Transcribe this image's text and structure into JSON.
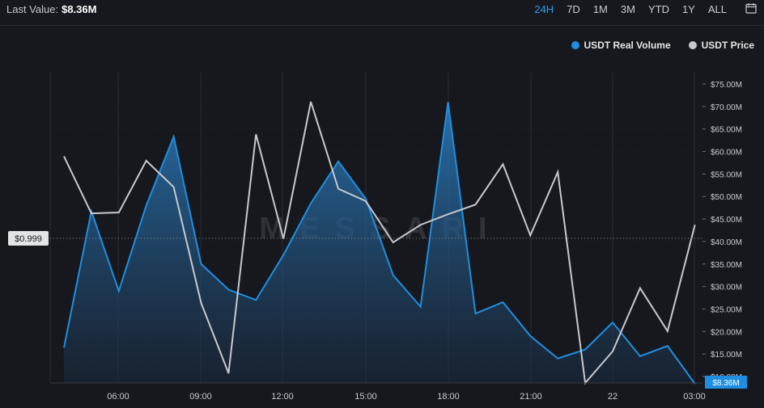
{
  "header": {
    "last_label": "Last Value:",
    "last_value": "$8.36M",
    "ranges": [
      "24H",
      "7D",
      "1M",
      "3M",
      "YTD",
      "1Y",
      "ALL"
    ],
    "active_range": "24H",
    "calendar_icon": "calendar-icon"
  },
  "colors": {
    "volume": "#1e8fe0",
    "price": "#c8c9cf",
    "background": "#17181d",
    "grid": "#2b2d34"
  },
  "watermark": "MESSARI",
  "chart_data": {
    "type": "line",
    "x_tick_labels": [
      "06:00",
      "09:00",
      "12:00",
      "15:00",
      "18:00",
      "21:00",
      "22",
      "03:00"
    ],
    "y_right_ticks": [
      "$10.00M",
      "$15.00M",
      "$20.00M",
      "$25.00M",
      "$30.00M",
      "$35.00M",
      "$40.00M",
      "$45.00M",
      "$50.00M",
      "$55.00M",
      "$60.00M",
      "$65.00M",
      "$70.00M",
      "$75.00M"
    ],
    "y_right_range": [
      10,
      75
    ],
    "price_label": "$0.999",
    "volume_last_label": "$8.36M",
    "series": [
      {
        "name": "USDT Real Volume",
        "type": "area",
        "values": [
          16.4,
          46.7,
          29.0,
          48.0,
          63.3,
          35.0,
          29.3,
          27.0,
          37.0,
          48.5,
          57.8,
          49.5,
          32.5,
          25.5,
          71.0,
          24.0,
          26.5,
          19.0,
          14.0,
          16.0,
          22.0,
          14.5,
          16.8,
          8.36
        ]
      },
      {
        "name": "USDT Price",
        "type": "line",
        "values": [
          0.99948,
          0.99883,
          0.99884,
          0.99943,
          0.99913,
          0.99781,
          0.99701,
          0.99973,
          0.99854,
          1.0001,
          0.99911,
          0.99897,
          0.9985,
          0.9987,
          0.99882,
          0.99893,
          0.99939,
          0.99858,
          0.9993,
          0.9969,
          0.99726,
          0.99798,
          0.99749,
          0.9987
        ]
      }
    ]
  }
}
